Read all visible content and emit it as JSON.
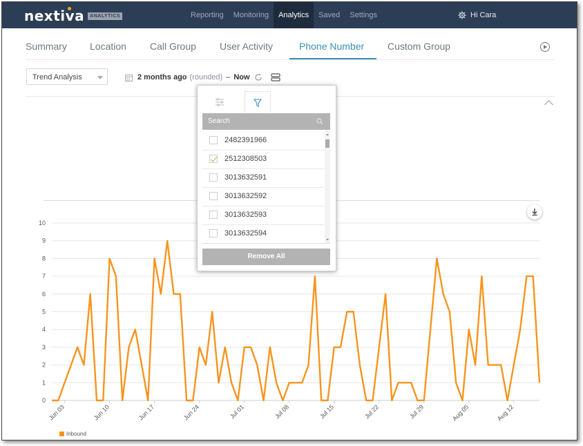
{
  "brand": {
    "name": "nextiva",
    "badge": "ANALYTICS"
  },
  "nav": {
    "items": [
      "Reporting",
      "Monitoring",
      "Analytics",
      "Saved",
      "Settings"
    ],
    "active_index": 2,
    "greeting": "Hi Cara"
  },
  "tabs": {
    "items": [
      "Summary",
      "Location",
      "Call Group",
      "User Activity",
      "Phone Number",
      "Custom Group"
    ],
    "active_index": 4
  },
  "controls": {
    "report_type": "Trend Analysis",
    "range_start": "2 months ago",
    "range_rounded": "(rounded)",
    "range_dash": "–",
    "range_end": "Now"
  },
  "filter_popup": {
    "search_placeholder": "Search",
    "items": [
      {
        "number": "2482391966",
        "checked": false
      },
      {
        "number": "2512308503",
        "checked": true
      },
      {
        "number": "3013632591",
        "checked": false
      },
      {
        "number": "3013632592",
        "checked": false
      },
      {
        "number": "3013632593",
        "checked": false
      },
      {
        "number": "3013632594",
        "checked": false
      }
    ],
    "remove_label": "Remove All"
  },
  "colors": {
    "topbar": "#2c3e55",
    "accent": "#3a8fb7",
    "series": "#f7941d"
  },
  "chart_data": {
    "type": "line",
    "series": [
      {
        "name": "Inbound",
        "values": [
          0,
          0,
          1,
          2,
          3,
          2,
          6,
          0,
          0,
          8,
          7,
          0,
          3,
          4,
          2,
          0,
          8,
          6,
          9,
          6,
          6,
          0,
          0,
          3,
          2,
          5,
          1,
          3,
          1,
          0,
          3,
          3,
          2,
          0,
          3,
          1,
          0,
          1,
          1,
          1,
          2,
          7,
          0,
          0,
          3,
          3,
          5,
          5,
          2,
          0,
          0,
          3,
          6,
          0,
          1,
          1,
          1,
          0,
          0,
          4,
          8,
          6,
          5,
          1,
          0,
          4,
          2,
          7,
          2,
          2,
          2,
          0,
          2,
          4,
          7,
          7,
          1
        ]
      }
    ],
    "x_tick_labels": [
      "Jun 03",
      "Jun 10",
      "Jun 17",
      "Jun 24",
      "Jul 01",
      "Jul 08",
      "Jul 15",
      "Jul 22",
      "Jul 29",
      "Aug 05",
      "Aug 12"
    ],
    "ylim": [
      0,
      10
    ],
    "y_ticks": [
      "0",
      "1",
      "2",
      "3",
      "4",
      "5",
      "6",
      "7",
      "8",
      "9",
      "10"
    ],
    "grid": true,
    "legend": "bottom-left"
  }
}
